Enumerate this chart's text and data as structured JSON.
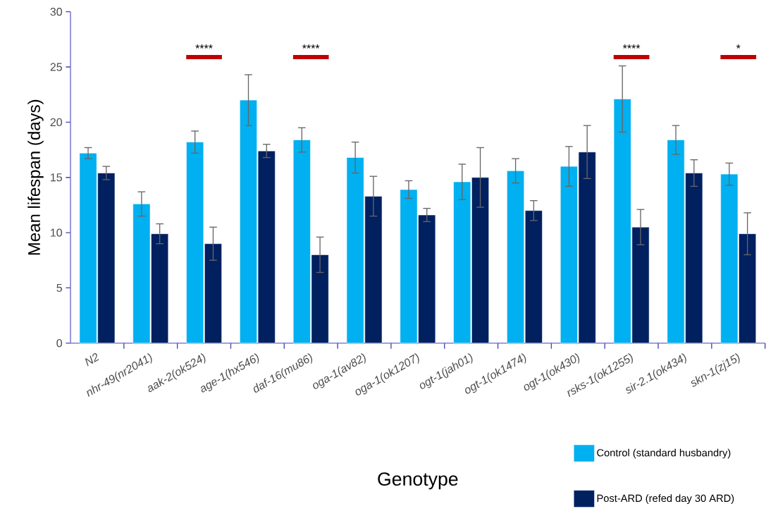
{
  "chart_data": {
    "type": "bar",
    "xlabel": "Genotype",
    "ylabel": "Mean lifespan (days)",
    "categories": [
      "N2",
      "nhr-49(nr2041)",
      "aak-2(ok524)",
      "age-1(hx546)",
      "daf-16(mu86)",
      "oga-1(av82)",
      "oga-1(ok1207)",
      "ogt-1(jah01)",
      "ogt-1(ok1474)",
      "ogt-1(ok430)",
      "rsks-1(ok1255)",
      "sir-2.1(ok434)",
      "skn-1(zj15)"
    ],
    "series": [
      {
        "name": "Control (standard husbandry)",
        "color": "#00b0f0",
        "values": [
          17.2,
          12.6,
          18.2,
          22.0,
          18.4,
          16.8,
          13.9,
          14.6,
          15.6,
          16.0,
          22.1,
          18.4,
          15.3
        ],
        "errors": [
          0.5,
          1.1,
          1.0,
          2.3,
          1.1,
          1.4,
          0.8,
          1.6,
          1.1,
          1.8,
          3.0,
          1.3,
          1.0
        ]
      },
      {
        "name": "Post-ARD (refed day 30 ARD)",
        "color": "#002060",
        "values": [
          15.4,
          9.9,
          9.0,
          17.4,
          8.0,
          13.3,
          11.6,
          15.0,
          12.0,
          17.3,
          10.5,
          15.4,
          9.9
        ],
        "errors": [
          0.6,
          0.9,
          1.5,
          0.6,
          1.6,
          1.8,
          0.6,
          2.7,
          0.9,
          2.4,
          1.6,
          1.2,
          1.9
        ]
      }
    ],
    "ylim": [
      0,
      30
    ],
    "yticks": [
      0,
      5,
      10,
      15,
      20,
      25,
      30
    ],
    "legend": "bottom right",
    "annotations": [
      "****",
      "****",
      "****",
      "*"
    ]
  }
}
